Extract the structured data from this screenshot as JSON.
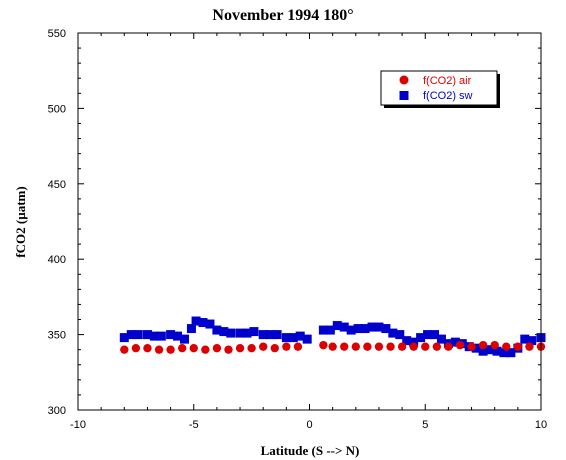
{
  "chart_data": {
    "type": "scatter",
    "title": "November 1994 180°",
    "xlabel": "Latitude (S --> N)",
    "ylabel": "fCO2 (µatm)",
    "xlim": [
      -10,
      10
    ],
    "ylim": [
      300,
      550
    ],
    "xticks": [
      -10,
      -5,
      0,
      5,
      10
    ],
    "yticks": [
      300,
      350,
      400,
      450,
      500,
      550
    ],
    "legend_position": "top-right",
    "series": [
      {
        "name": "f(CO2) air",
        "marker": "circle",
        "color": "#dd0000",
        "x": [
          -8.0,
          -7.5,
          -7.0,
          -6.5,
          -6.0,
          -5.5,
          -5.0,
          -4.5,
          -4.0,
          -3.5,
          -3.0,
          -2.5,
          -2.0,
          -1.5,
          -1.0,
          -0.5,
          0.6,
          1.0,
          1.5,
          2.0,
          2.5,
          3.0,
          3.5,
          4.0,
          4.5,
          5.0,
          5.5,
          6.0,
          6.5,
          7.0,
          7.5,
          8.0,
          8.5,
          9.0,
          9.5,
          10.0
        ],
        "y": [
          340,
          341,
          341,
          340,
          340,
          341,
          341,
          340,
          341,
          340,
          341,
          341,
          342,
          341,
          342,
          342,
          343,
          342,
          342,
          342,
          342,
          342,
          342,
          342,
          342,
          342,
          342,
          342,
          343,
          342,
          343,
          343,
          342,
          342,
          342,
          342
        ]
      },
      {
        "name": "f(CO2) sw",
        "marker": "square",
        "color": "#0000cc",
        "x": [
          -8.0,
          -7.7,
          -7.4,
          -7.0,
          -6.7,
          -6.4,
          -6.0,
          -5.7,
          -5.4,
          -5.1,
          -4.9,
          -4.6,
          -4.3,
          -4.0,
          -3.7,
          -3.4,
          -3.0,
          -2.7,
          -2.4,
          -2.0,
          -1.7,
          -1.4,
          -1.0,
          -0.7,
          -0.4,
          -0.1,
          0.6,
          0.9,
          1.2,
          1.5,
          1.8,
          2.1,
          2.4,
          2.7,
          3.0,
          3.3,
          3.6,
          3.9,
          4.2,
          4.5,
          4.8,
          5.1,
          5.4,
          5.7,
          6.0,
          6.3,
          6.6,
          6.9,
          7.2,
          7.5,
          7.8,
          8.1,
          8.4,
          8.7,
          9.0,
          9.3,
          9.6,
          10.0
        ],
        "y": [
          348,
          350,
          350,
          350,
          349,
          349,
          350,
          349,
          347,
          354,
          359,
          358,
          357,
          353,
          352,
          351,
          351,
          351,
          352,
          350,
          350,
          350,
          348,
          348,
          349,
          347,
          353,
          353,
          356,
          355,
          353,
          354,
          354,
          355,
          355,
          354,
          351,
          350,
          346,
          345,
          348,
          350,
          350,
          347,
          344,
          345,
          344,
          342,
          341,
          339,
          340,
          339,
          338,
          338,
          341,
          347,
          346,
          348
        ]
      }
    ]
  }
}
